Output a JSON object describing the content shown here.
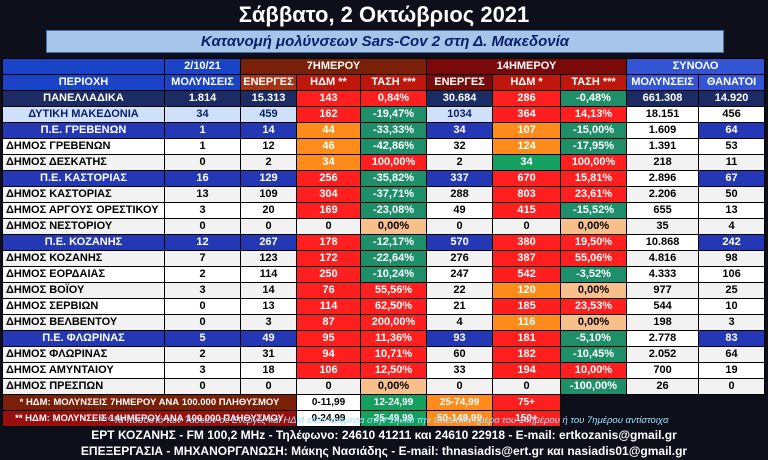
{
  "title": "Σάββατο, 2 Οκτώβριος 2021",
  "subtitle": "Κατανομή μολύνσεων Sars-Cov 2 στη Δ. Μακεδονία",
  "headers": {
    "date": "2/10/21",
    "seven_day": "7ΗΜΕΡΟΥ",
    "fourteen_day": "14ΗΜΕΡΟΥ",
    "total": "ΣΥΝΟΛΟ",
    "area": "ΠΕΡΙΟΧΗ",
    "infections": "ΜΟΛΥΝΣΕΙΣ",
    "active7": "ΕΝΕΡΓΕΣ",
    "idm7": "ΗΔΜ **",
    "trend7": "ΤΑΣΗ ***",
    "active14": "ΕΝΕΡΓΕΣ",
    "idm14": "ΗΔΜ *",
    "trend14": "ΤΑΣΗ ***",
    "total_infections": "ΜΟΛΥΝΣΕΙΣ",
    "deaths": "ΘΑΝΑΤΟΙ"
  },
  "rows": [
    {
      "name": "ΠΑΝΕΛΛΑΔΙΚΑ",
      "inf": "1.814",
      "a7": "15.313",
      "i7": "143",
      "t7": "0,84%",
      "a14": "30.684",
      "i14": "286",
      "t14": "-0,48%",
      "tot": "661.308",
      "d": "14.920"
    },
    {
      "name": "ΔΥΤΙΚΗ ΜΑΚΕΔΟΝΙΑ",
      "inf": "34",
      "a7": "459",
      "i7": "162",
      "t7": "-19,47%",
      "a14": "1034",
      "i14": "364",
      "t14": "14,13%",
      "tot": "18.151",
      "d": "456"
    },
    {
      "name": "Π.Ε. ΓΡΕΒΕΝΩΝ",
      "inf": "1",
      "a7": "14",
      "i7": "44",
      "t7": "-33,33%",
      "a14": "34",
      "i14": "107",
      "t14": "-15,00%",
      "tot": "1.609",
      "d": "64"
    },
    {
      "name": "ΔΗΜΟΣ ΓΡΕΒΕΝΩΝ",
      "inf": "1",
      "a7": "12",
      "i7": "46",
      "t7": "-42,86%",
      "a14": "32",
      "i14": "124",
      "t14": "-17,95%",
      "tot": "1.391",
      "d": "53"
    },
    {
      "name": "ΔΗΜΟΣ ΔΕΣΚΑΤΗΣ",
      "inf": "0",
      "a7": "2",
      "i7": "34",
      "t7": "100,00%",
      "a14": "2",
      "i14": "34",
      "t14": "100,00%",
      "tot": "218",
      "d": "11"
    },
    {
      "name": "Π.Ε. ΚΑΣΤΟΡΙΑΣ",
      "inf": "16",
      "a7": "129",
      "i7": "256",
      "t7": "-35,82%",
      "a14": "337",
      "i14": "670",
      "t14": "15,81%",
      "tot": "2.896",
      "d": "67"
    },
    {
      "name": "ΔΗΜΟΣ ΚΑΣΤΟΡΙΑΣ",
      "inf": "13",
      "a7": "109",
      "i7": "304",
      "t7": "-37,71%",
      "a14": "288",
      "i14": "803",
      "t14": "23,61%",
      "tot": "2.206",
      "d": "50"
    },
    {
      "name": "ΔΗΜΟΣ ΑΡΓΟΥΣ ΟΡΕΣΤΙΚΟΥ",
      "inf": "3",
      "a7": "20",
      "i7": "169",
      "t7": "-23,08%",
      "a14": "49",
      "i14": "415",
      "t14": "-15,52%",
      "tot": "655",
      "d": "13"
    },
    {
      "name": "ΔΗΜΟΣ ΝΕΣΤΟΡΙΟΥ",
      "inf": "0",
      "a7": "0",
      "i7": "0",
      "t7": "0,00%",
      "a14": "0",
      "i14": "0",
      "t14": "0,00%",
      "tot": "35",
      "d": "4"
    },
    {
      "name": "Π.Ε. ΚΟΖΑΝΗΣ",
      "inf": "12",
      "a7": "267",
      "i7": "178",
      "t7": "-12,17%",
      "a14": "570",
      "i14": "380",
      "t14": "19,50%",
      "tot": "10.868",
      "d": "242"
    },
    {
      "name": "ΔΗΜΟΣ ΚΟΖΑΝΗΣ",
      "inf": "7",
      "a7": "123",
      "i7": "172",
      "t7": "-22,64%",
      "a14": "276",
      "i14": "387",
      "t14": "55,06%",
      "tot": "4.816",
      "d": "98"
    },
    {
      "name": "ΔΗΜΟΣ ΕΟΡΔΑΙΑΣ",
      "inf": "2",
      "a7": "114",
      "i7": "250",
      "t7": "-10,24%",
      "a14": "247",
      "i14": "542",
      "t14": "-3,52%",
      "tot": "4.333",
      "d": "106"
    },
    {
      "name": "ΔΗΜΟΣ ΒΟΪΟΥ",
      "inf": "3",
      "a7": "14",
      "i7": "76",
      "t7": "55,56%",
      "a14": "22",
      "i14": "120",
      "t14": "0,00%",
      "tot": "977",
      "d": "25"
    },
    {
      "name": "ΔΗΜΟΣ ΣΕΡΒΙΩΝ",
      "inf": "0",
      "a7": "13",
      "i7": "114",
      "t7": "62,50%",
      "a14": "21",
      "i14": "185",
      "t14": "23,53%",
      "tot": "544",
      "d": "10"
    },
    {
      "name": "ΔΗΜΟΣ ΒΕΛΒΕΝΤΟΥ",
      "inf": "0",
      "a7": "3",
      "i7": "87",
      "t7": "200,00%",
      "a14": "4",
      "i14": "116",
      "t14": "0,00%",
      "tot": "198",
      "d": "3"
    },
    {
      "name": "Π.Ε. ΦΛΩΡΙΝΑΣ",
      "inf": "5",
      "a7": "49",
      "i7": "95",
      "t7": "11,36%",
      "a14": "93",
      "i14": "181",
      "t14": "-5,10%",
      "tot": "2.778",
      "d": "83"
    },
    {
      "name": "ΔΗΜΟΣ ΦΛΩΡΙΝΑΣ",
      "inf": "2",
      "a7": "31",
      "i7": "94",
      "t7": "10,71%",
      "a14": "60",
      "i14": "182",
      "t14": "-10,45%",
      "tot": "2.052",
      "d": "64"
    },
    {
      "name": "ΔΗΜΟΣ ΑΜΥΝΤΑΙΟΥ",
      "inf": "3",
      "a7": "18",
      "i7": "106",
      "t7": "12,50%",
      "a14": "33",
      "i14": "194",
      "t14": "10,00%",
      "tot": "700",
      "d": "19"
    },
    {
      "name": "ΔΗΜΟΣ ΠΡΕΣΠΩΝ",
      "inf": "0",
      "a7": "0",
      "i7": "0",
      "t7": "0,00%",
      "a14": "0",
      "i14": "0",
      "t14": "-100,00%",
      "tot": "26",
      "d": "0"
    }
  ],
  "legend": {
    "row1_label": "* ΗΔΜ: ΜΟΛΥΝΣΕΙΣ 7ΗΜΕΡΟΥ ΑΝΑ 100.000 ΠΛΗΘΥΣΜΟΥ",
    "row2_label": "** ΗΔΜ: ΜΟΛΥΝΣΕΙΣ 14ΗΜΕΡΟΥ ΑΝΑ 100.000 ΠΛΗΘΥΣΜΟΥ",
    "row1_ranges": [
      "0-11,99",
      "12-24,99",
      "25-74,99",
      "75+"
    ],
    "row2_ranges": [
      "0-24,99",
      "25-49,99",
      "50-149,99",
      "150+"
    ]
  },
  "note": "*** Τα ποσοστά των Τάσεων σε Ενεργές και ΗΔΜ είναι ανάμεσα στην 1η και την τελευταία ημέρα του 14ημέρου ή του 7ημέρου αντίστοιχα",
  "footer_line1": "ΕΡΤ ΚΟΖΑΝΗΣ - FM 100,2 MHz - Τηλέφωνο:  24610 41211 και 24610 22918  - E-mail: ertkozanis@gmail.gr",
  "footer_line2": "ΕΠΕΞΕΡΓΑΣΙΑ  -  ΜΗΧΑΝΟΡΓΑΝΩΣΗ: Μάκης Νασιάδης  -   E-mail: thnasiadis@ert.gr και nasiadis01@gmail.gr",
  "colors": {
    "red": "#ff1f1f",
    "orange": "#ff8c1a",
    "peach": "#f7c08a",
    "green": "#16a060",
    "light_green": "#8fe37f",
    "white": "#ffffff"
  }
}
